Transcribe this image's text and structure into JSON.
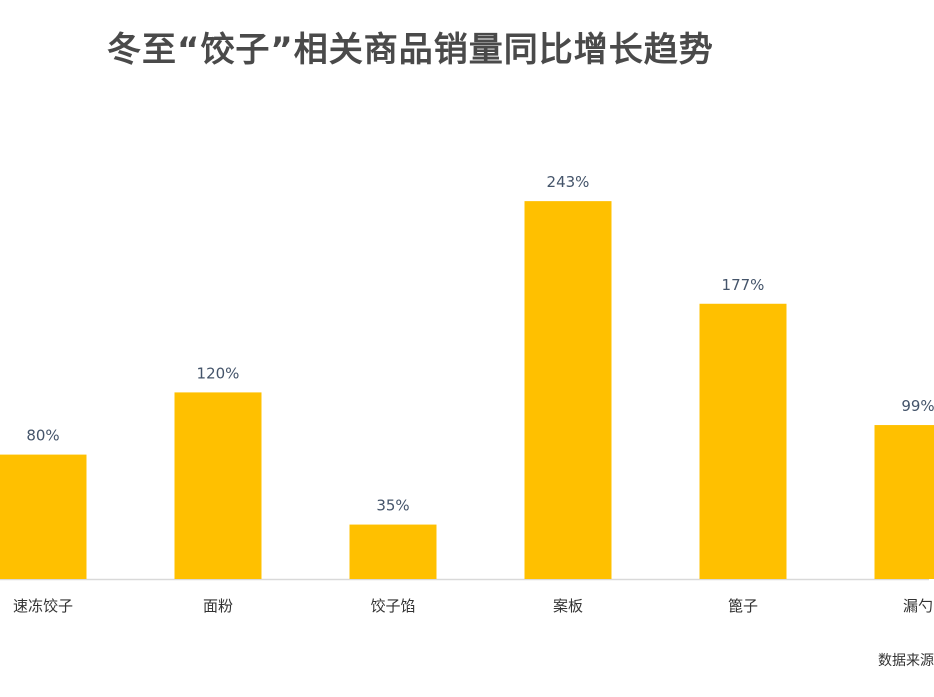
{
  "chart_data": {
    "type": "bar",
    "title": "冬至“饺子”相关商品销量同比增长趋势",
    "categories": [
      "速冻饺子",
      "面粉",
      "饺子馅",
      "案板",
      "篦子",
      "漏勺"
    ],
    "values": [
      80,
      120,
      35,
      243,
      177,
      99
    ],
    "data_labels": [
      "80%",
      "120%",
      "35%",
      "243%",
      "177%",
      "99%"
    ],
    "xlabel": "",
    "ylabel": "",
    "ylim": [
      0,
      250
    ],
    "grid": false,
    "legend": "none",
    "bar_color": "#FFC000",
    "axis_color": "#D9D9D9",
    "label_color": "#44546A"
  },
  "source_text": "数据来源"
}
